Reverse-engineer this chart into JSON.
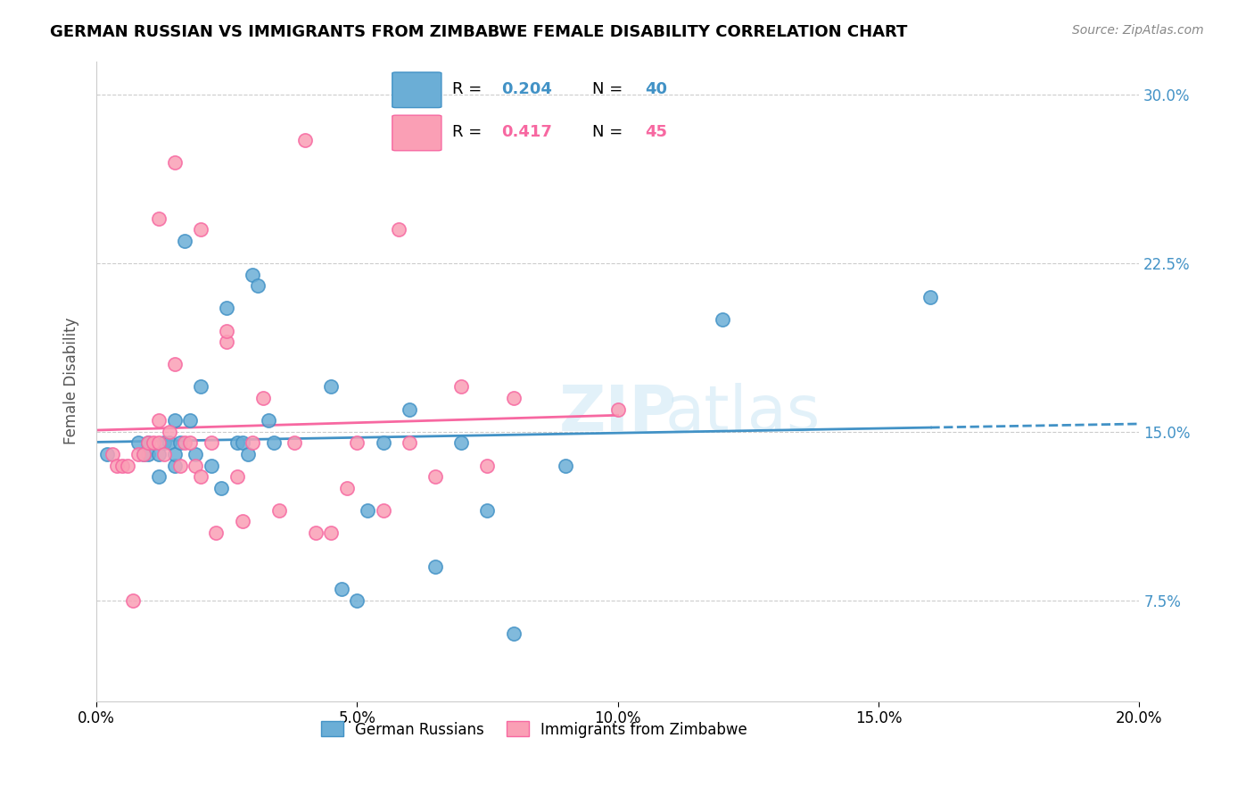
{
  "title": "GERMAN RUSSIAN VS IMMIGRANTS FROM ZIMBABWE FEMALE DISABILITY CORRELATION CHART",
  "source": "Source: ZipAtlas.com",
  "xlabel_ticks": [
    "0.0%",
    "5.0%",
    "10.0%",
    "15.0%",
    "20.0%"
  ],
  "ylabel_ticks": [
    "7.5%",
    "15.0%",
    "22.5%",
    "30.0%"
  ],
  "xlim": [
    0.0,
    0.2
  ],
  "ylim": [
    0.03,
    0.315
  ],
  "ylabel": "Female Disability",
  "legend_r1": "R =   0.204   N = 40",
  "legend_r2": "R =   0.417   N = 45",
  "color_blue": "#6baed6",
  "color_pink": "#fa9fb5",
  "color_blue_line": "#4292c6",
  "color_pink_line": "#f768a1",
  "color_blue_text": "#4292c6",
  "color_pink_text": "#f768a1",
  "watermark": "ZIPatlas",
  "blue_x": [
    0.002,
    0.008,
    0.009,
    0.01,
    0.01,
    0.012,
    0.012,
    0.013,
    0.014,
    0.015,
    0.015,
    0.015,
    0.016,
    0.017,
    0.018,
    0.019,
    0.02,
    0.022,
    0.024,
    0.025,
    0.027,
    0.028,
    0.029,
    0.03,
    0.031,
    0.033,
    0.034,
    0.045,
    0.047,
    0.05,
    0.052,
    0.055,
    0.06,
    0.065,
    0.07,
    0.075,
    0.08,
    0.09,
    0.12,
    0.16
  ],
  "blue_y": [
    0.14,
    0.145,
    0.14,
    0.145,
    0.14,
    0.13,
    0.14,
    0.145,
    0.145,
    0.155,
    0.135,
    0.14,
    0.145,
    0.235,
    0.155,
    0.14,
    0.17,
    0.135,
    0.125,
    0.205,
    0.145,
    0.145,
    0.14,
    0.22,
    0.215,
    0.155,
    0.145,
    0.17,
    0.08,
    0.075,
    0.115,
    0.145,
    0.16,
    0.09,
    0.145,
    0.115,
    0.06,
    0.135,
    0.2,
    0.21
  ],
  "pink_x": [
    0.003,
    0.004,
    0.005,
    0.006,
    0.007,
    0.008,
    0.009,
    0.01,
    0.011,
    0.012,
    0.012,
    0.013,
    0.014,
    0.015,
    0.016,
    0.017,
    0.018,
    0.019,
    0.02,
    0.022,
    0.023,
    0.025,
    0.027,
    0.028,
    0.03,
    0.032,
    0.035,
    0.038,
    0.04,
    0.042,
    0.045,
    0.048,
    0.05,
    0.055,
    0.06,
    0.065,
    0.07,
    0.075,
    0.08,
    0.1,
    0.012,
    0.015,
    0.02,
    0.025,
    0.058
  ],
  "pink_y": [
    0.14,
    0.135,
    0.135,
    0.135,
    0.075,
    0.14,
    0.14,
    0.145,
    0.145,
    0.155,
    0.145,
    0.14,
    0.15,
    0.18,
    0.135,
    0.145,
    0.145,
    0.135,
    0.13,
    0.145,
    0.105,
    0.19,
    0.13,
    0.11,
    0.145,
    0.165,
    0.115,
    0.145,
    0.28,
    0.105,
    0.105,
    0.125,
    0.145,
    0.115,
    0.145,
    0.13,
    0.17,
    0.135,
    0.165,
    0.16,
    0.245,
    0.27,
    0.24,
    0.195,
    0.24
  ]
}
